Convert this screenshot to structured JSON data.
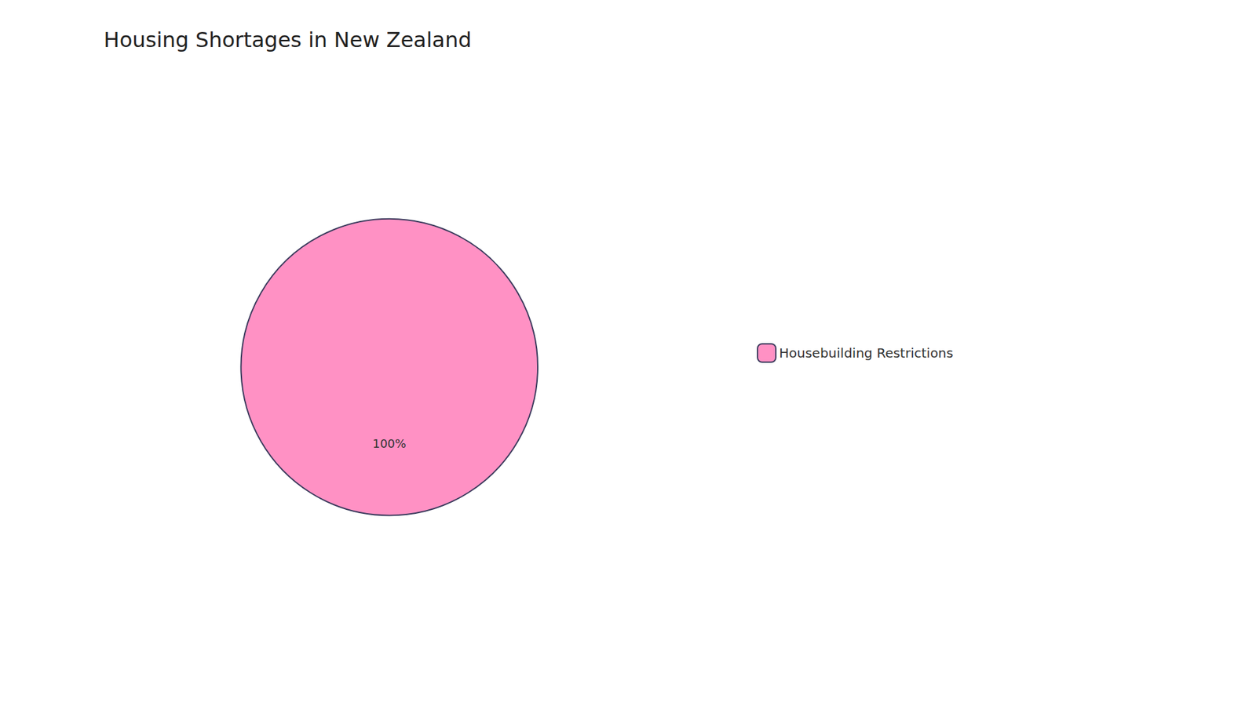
{
  "chart_data": {
    "type": "pie",
    "title": "Housing Shortages in New Zealand",
    "categories": [
      "Housebuilding Restrictions"
    ],
    "values": [
      100
    ],
    "value_labels": [
      "100%"
    ],
    "colors": [
      "#FF91C4"
    ],
    "data_labels": true,
    "legend": "right"
  }
}
